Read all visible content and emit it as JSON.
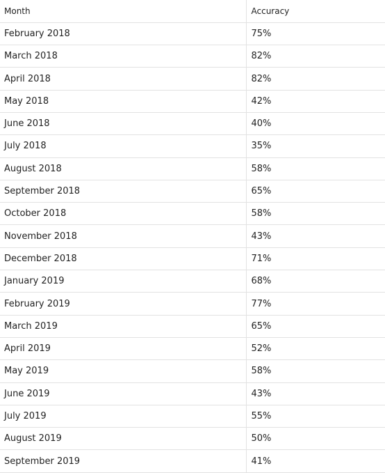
{
  "chart_data": {
    "type": "table",
    "columns": [
      "Month",
      "Accuracy"
    ],
    "rows": [
      [
        "February 2018",
        "75%"
      ],
      [
        "March 2018",
        "82%"
      ],
      [
        "April 2018",
        "82%"
      ],
      [
        "May 2018",
        "42%"
      ],
      [
        "June 2018",
        "40%"
      ],
      [
        "July 2018",
        "35%"
      ],
      [
        "August 2018",
        "58%"
      ],
      [
        "September 2018",
        "65%"
      ],
      [
        "October 2018",
        "58%"
      ],
      [
        "November 2018",
        "43%"
      ],
      [
        "December 2018",
        "71%"
      ],
      [
        "January 2019",
        "68%"
      ],
      [
        "February 2019",
        "77%"
      ],
      [
        "March 2019",
        "65%"
      ],
      [
        "April 2019",
        "52%"
      ],
      [
        "May 2019",
        "58%"
      ],
      [
        "June 2019",
        "43%"
      ],
      [
        "July 2019",
        "55%"
      ],
      [
        "August 2019",
        "50%"
      ],
      [
        "September 2019",
        "41%"
      ]
    ]
  }
}
